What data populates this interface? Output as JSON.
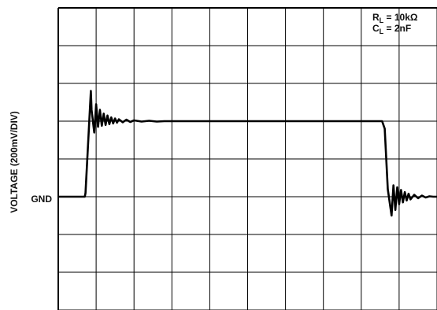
{
  "chart_data": {
    "type": "line",
    "title": "",
    "xlabel": "",
    "ylabel": "VOLTAGE (200mV/DIV)",
    "ground_label": "GND",
    "annotations": [
      {
        "base": "R",
        "sub": "L",
        "rest": " = 10kΩ"
      },
      {
        "base": "C",
        "sub": "L",
        "rest": " = 2nF"
      }
    ],
    "grid": true,
    "x_divisions": 10,
    "y_divisions": 8,
    "xlim": [
      0,
      10
    ],
    "ylim": [
      -3,
      5
    ],
    "trace_color": "#000000",
    "series": [
      {
        "values_x": [
          0.0,
          0.7,
          0.72,
          0.86,
          0.88,
          0.95,
          1.0,
          1.05,
          1.1,
          1.15,
          1.2,
          1.25,
          1.3,
          1.35,
          1.4,
          1.45,
          1.5,
          1.55,
          1.6,
          1.7,
          1.8,
          1.9,
          2.0,
          2.2,
          2.4,
          2.6,
          2.8,
          3.0,
          3.5,
          4.0,
          5.0,
          6.0,
          7.0,
          8.0,
          8.55,
          8.62,
          8.7,
          8.8,
          8.85,
          8.9,
          8.95,
          9.0,
          9.05,
          9.1,
          9.15,
          9.2,
          9.25,
          9.3,
          9.4,
          9.5,
          9.6,
          9.7,
          9.8,
          9.9,
          10.0
        ],
        "values_y": [
          0.0,
          0.0,
          0.1,
          2.8,
          2.3,
          1.7,
          2.45,
          1.85,
          2.3,
          1.88,
          2.2,
          1.9,
          2.15,
          1.92,
          2.1,
          1.94,
          2.07,
          1.96,
          2.05,
          1.97,
          2.04,
          1.98,
          2.02,
          1.99,
          2.01,
          1.99,
          2.0,
          2.0,
          2.0,
          2.0,
          2.0,
          2.0,
          2.0,
          2.0,
          2.0,
          1.8,
          0.2,
          -0.5,
          0.3,
          -0.35,
          0.25,
          -0.2,
          0.18,
          -0.15,
          0.12,
          -0.1,
          0.08,
          -0.07,
          0.05,
          -0.04,
          0.03,
          -0.02,
          0.01,
          0.0,
          0.0
        ]
      }
    ]
  }
}
